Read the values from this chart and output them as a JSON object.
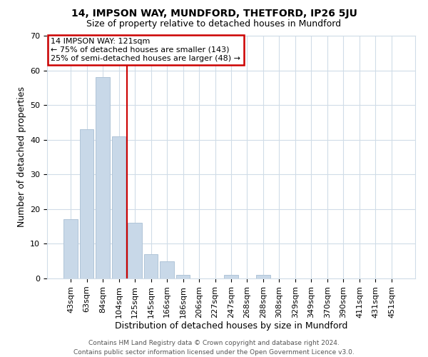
{
  "title": "14, IMPSON WAY, MUNDFORD, THETFORD, IP26 5JU",
  "subtitle": "Size of property relative to detached houses in Mundford",
  "xlabel": "Distribution of detached houses by size in Mundford",
  "ylabel": "Number of detached properties",
  "footer_lines": [
    "Contains HM Land Registry data © Crown copyright and database right 2024.",
    "Contains public sector information licensed under the Open Government Licence v3.0."
  ],
  "categories": [
    "43sqm",
    "63sqm",
    "84sqm",
    "104sqm",
    "125sqm",
    "145sqm",
    "166sqm",
    "186sqm",
    "206sqm",
    "227sqm",
    "247sqm",
    "268sqm",
    "288sqm",
    "308sqm",
    "329sqm",
    "349sqm",
    "370sqm",
    "390sqm",
    "411sqm",
    "431sqm",
    "451sqm"
  ],
  "values": [
    17,
    43,
    58,
    41,
    16,
    7,
    5,
    1,
    0,
    0,
    1,
    0,
    1,
    0,
    0,
    0,
    0,
    0,
    0,
    0,
    0
  ],
  "bar_color": "#c8d8e8",
  "bar_edge_color": "#b0c4d8",
  "annotation_box_text": "14 IMPSON WAY: 121sqm\n← 75% of detached houses are smaller (143)\n25% of semi-detached houses are larger (48) →",
  "annotation_box_facecolor": "white",
  "annotation_box_edgecolor": "#cc0000",
  "vline_color": "#cc0000",
  "vline_x_index": 3.5,
  "ylim": [
    0,
    70
  ],
  "yticks": [
    0,
    10,
    20,
    30,
    40,
    50,
    60,
    70
  ],
  "bg_color": "white",
  "grid_color": "#d0dce8",
  "title_fontsize": 10,
  "subtitle_fontsize": 9,
  "xlabel_fontsize": 9,
  "ylabel_fontsize": 9,
  "tick_fontsize": 8,
  "annotation_fontsize": 8,
  "footer_fontsize": 6.5
}
